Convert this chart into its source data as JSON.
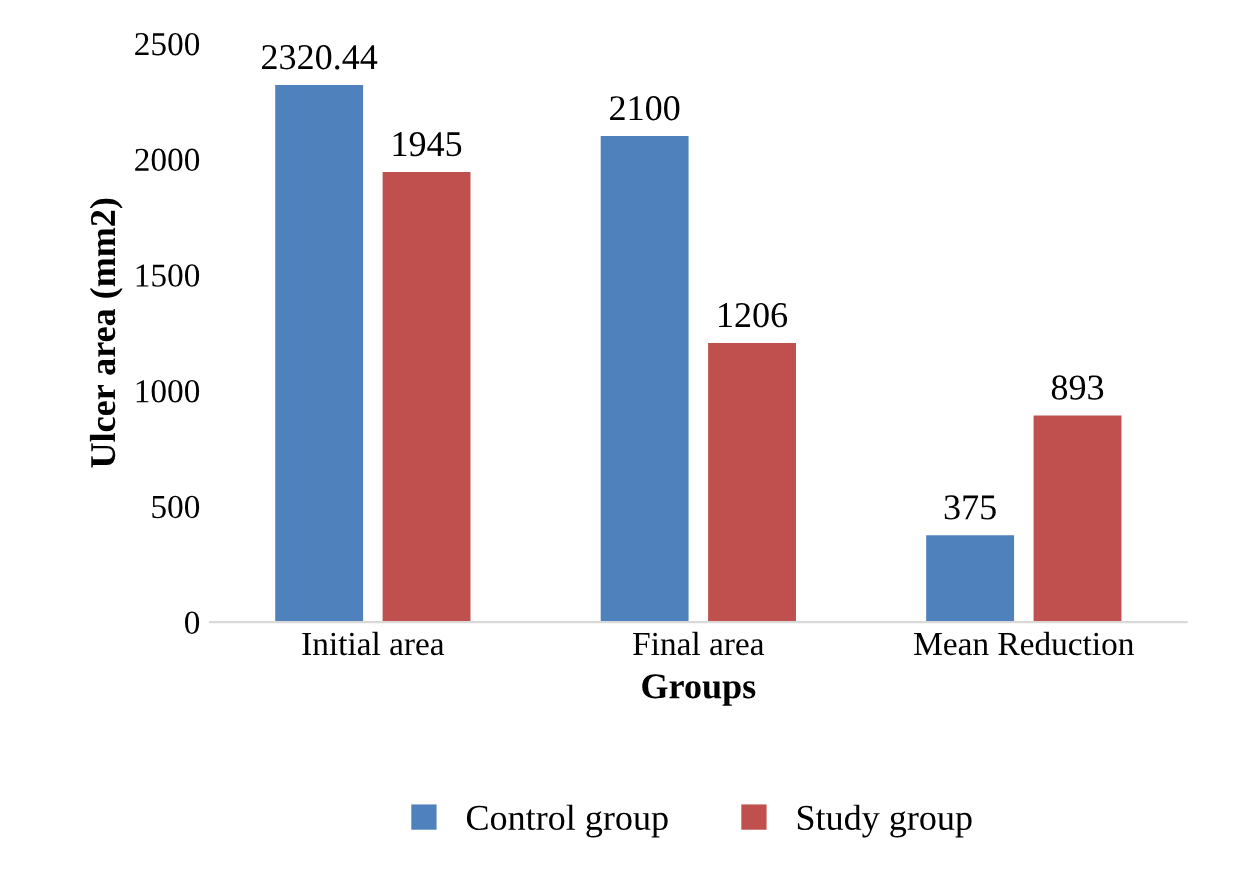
{
  "chart_data": {
    "type": "bar",
    "xlabel": "Groups",
    "ylabel": "Ulcer area (mm2)",
    "categories": [
      "Initial area",
      "Final area",
      "Mean Reduction"
    ],
    "series": [
      {
        "name": "Control group",
        "color": "#4f81bd",
        "values": [
          2320.44,
          2100,
          375
        ]
      },
      {
        "name": "Study group",
        "color": "#c0504d",
        "values": [
          1945,
          1206,
          893
        ]
      }
    ],
    "ylim": [
      0,
      2500
    ],
    "yticks": [
      0,
      500,
      1000,
      1500,
      2000,
      2500
    ],
    "grid": false,
    "legend": "bottom",
    "data_labels": true
  }
}
